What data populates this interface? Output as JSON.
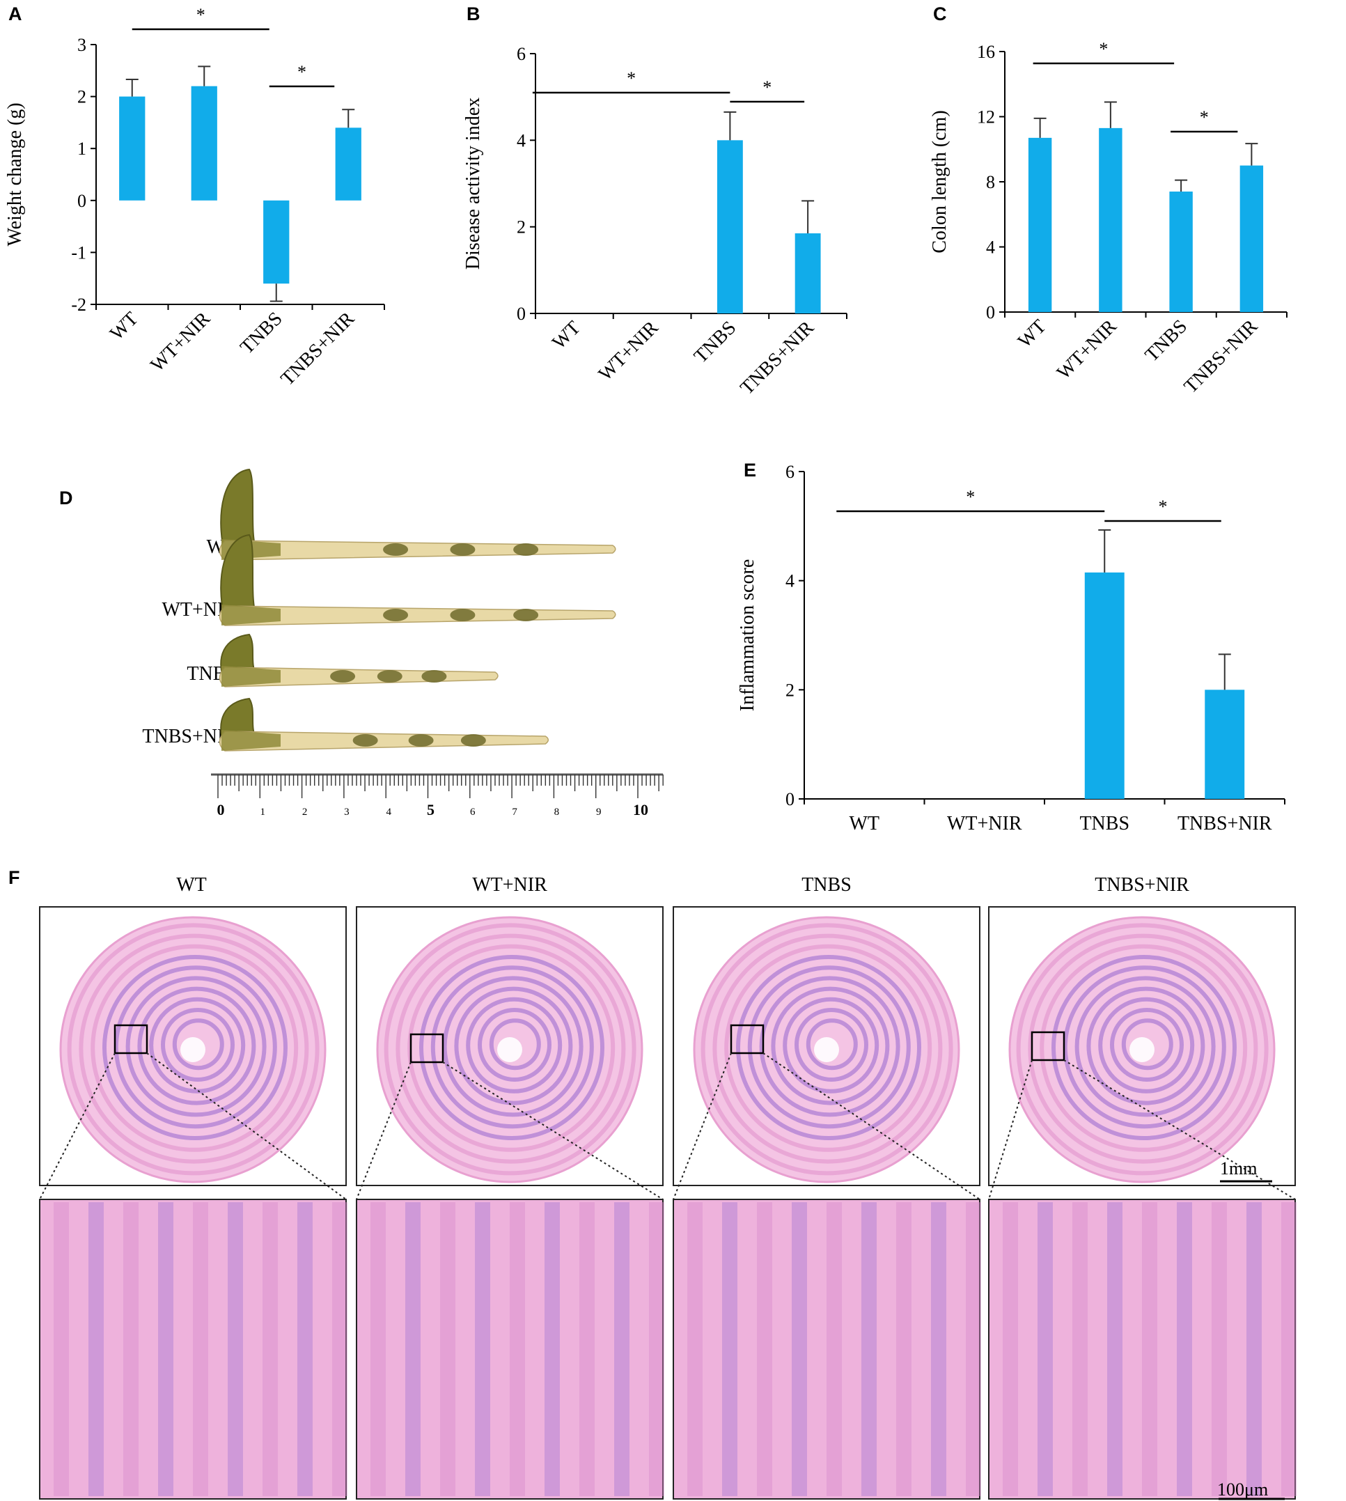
{
  "colors": {
    "bar": "#11acea",
    "axis": "#000000",
    "tissue": "#e8a0d0",
    "tissue_dark": "#a97bd3"
  },
  "panels": {
    "A": "A",
    "B": "B",
    "C": "C",
    "D": "D",
    "E": "E",
    "F": "F"
  },
  "chart_data": [
    {
      "id": "A",
      "type": "bar",
      "categories": [
        "WT",
        "WT+NIR",
        "TNBS",
        "TNBS+NIR"
      ],
      "values": [
        2.0,
        2.2,
        -1.6,
        1.4
      ],
      "errors": [
        0.33,
        0.38,
        0.34,
        0.35
      ],
      "ylabel": "Weight change (g)",
      "ylim": [
        -2,
        3
      ],
      "yticks": [
        "-2",
        "-1",
        "0",
        "1",
        "2",
        "3"
      ],
      "yticks_values": [
        -2,
        -1,
        0,
        1,
        2,
        3
      ],
      "significance": [
        {
          "from": 0,
          "to": 2,
          "label": "*"
        },
        {
          "from": 2,
          "to": 3,
          "label": "*"
        }
      ]
    },
    {
      "id": "B",
      "type": "bar",
      "categories": [
        "WT",
        "WT+NIR",
        "TNBS",
        "TNBS+NIR"
      ],
      "values": [
        0,
        0,
        4.0,
        1.85
      ],
      "errors": [
        0,
        0,
        0.65,
        0.75
      ],
      "ylabel": "Disease activity index",
      "ylim": [
        0,
        6
      ],
      "yticks": [
        "0",
        "2",
        "4",
        "6"
      ],
      "yticks_values": [
        0,
        2,
        4,
        6
      ],
      "significance": [
        {
          "from": 0,
          "to": 2,
          "label": "*"
        },
        {
          "from": 2,
          "to": 3,
          "label": "*"
        }
      ]
    },
    {
      "id": "C",
      "type": "bar",
      "categories": [
        "WT",
        "WT+NIR",
        "TNBS",
        "TNBS+NIR"
      ],
      "values": [
        10.7,
        11.3,
        7.4,
        9.0
      ],
      "errors": [
        1.2,
        1.6,
        0.7,
        1.35
      ],
      "ylabel": "Colon length (cm)",
      "ylim": [
        0,
        16
      ],
      "yticks": [
        "0",
        "4",
        "8",
        "12",
        "16"
      ],
      "yticks_values": [
        0,
        4,
        8,
        12,
        16
      ],
      "significance": [
        {
          "from": 0,
          "to": 2,
          "label": "*"
        },
        {
          "from": 2,
          "to": 3,
          "label": "*"
        }
      ]
    },
    {
      "id": "E",
      "type": "bar",
      "categories": [
        "WT",
        "WT+NIR",
        "TNBS",
        "TNBS+NIR"
      ],
      "values": [
        0,
        0,
        4.15,
        2.0
      ],
      "errors": [
        0,
        0,
        0.78,
        0.65
      ],
      "ylabel": "Inflammation score",
      "ylim": [
        0,
        6
      ],
      "yticks": [
        "0",
        "2",
        "4",
        "6"
      ],
      "yticks_values": [
        0,
        2,
        4,
        6
      ],
      "significance": [
        {
          "from": 0,
          "to": 2,
          "label": "*"
        },
        {
          "from": 2,
          "to": 3,
          "label": "*"
        }
      ]
    }
  ],
  "photo_D": {
    "labels": [
      "WT",
      "WT+NIR",
      "TNBS",
      "TNBS+NIR"
    ],
    "colon_lengths_cm": [
      9.4,
      9.4,
      6.6,
      7.8
    ],
    "ruler_numbers": [
      "0",
      "1",
      "2",
      "3",
      "4",
      "5",
      "6",
      "7",
      "8",
      "9",
      "10"
    ]
  },
  "histology_F": {
    "columns": [
      "WT",
      "WT+NIR",
      "TNBS",
      "TNBS+NIR"
    ],
    "scale_top": "1mm",
    "scale_bottom": "100μm"
  }
}
